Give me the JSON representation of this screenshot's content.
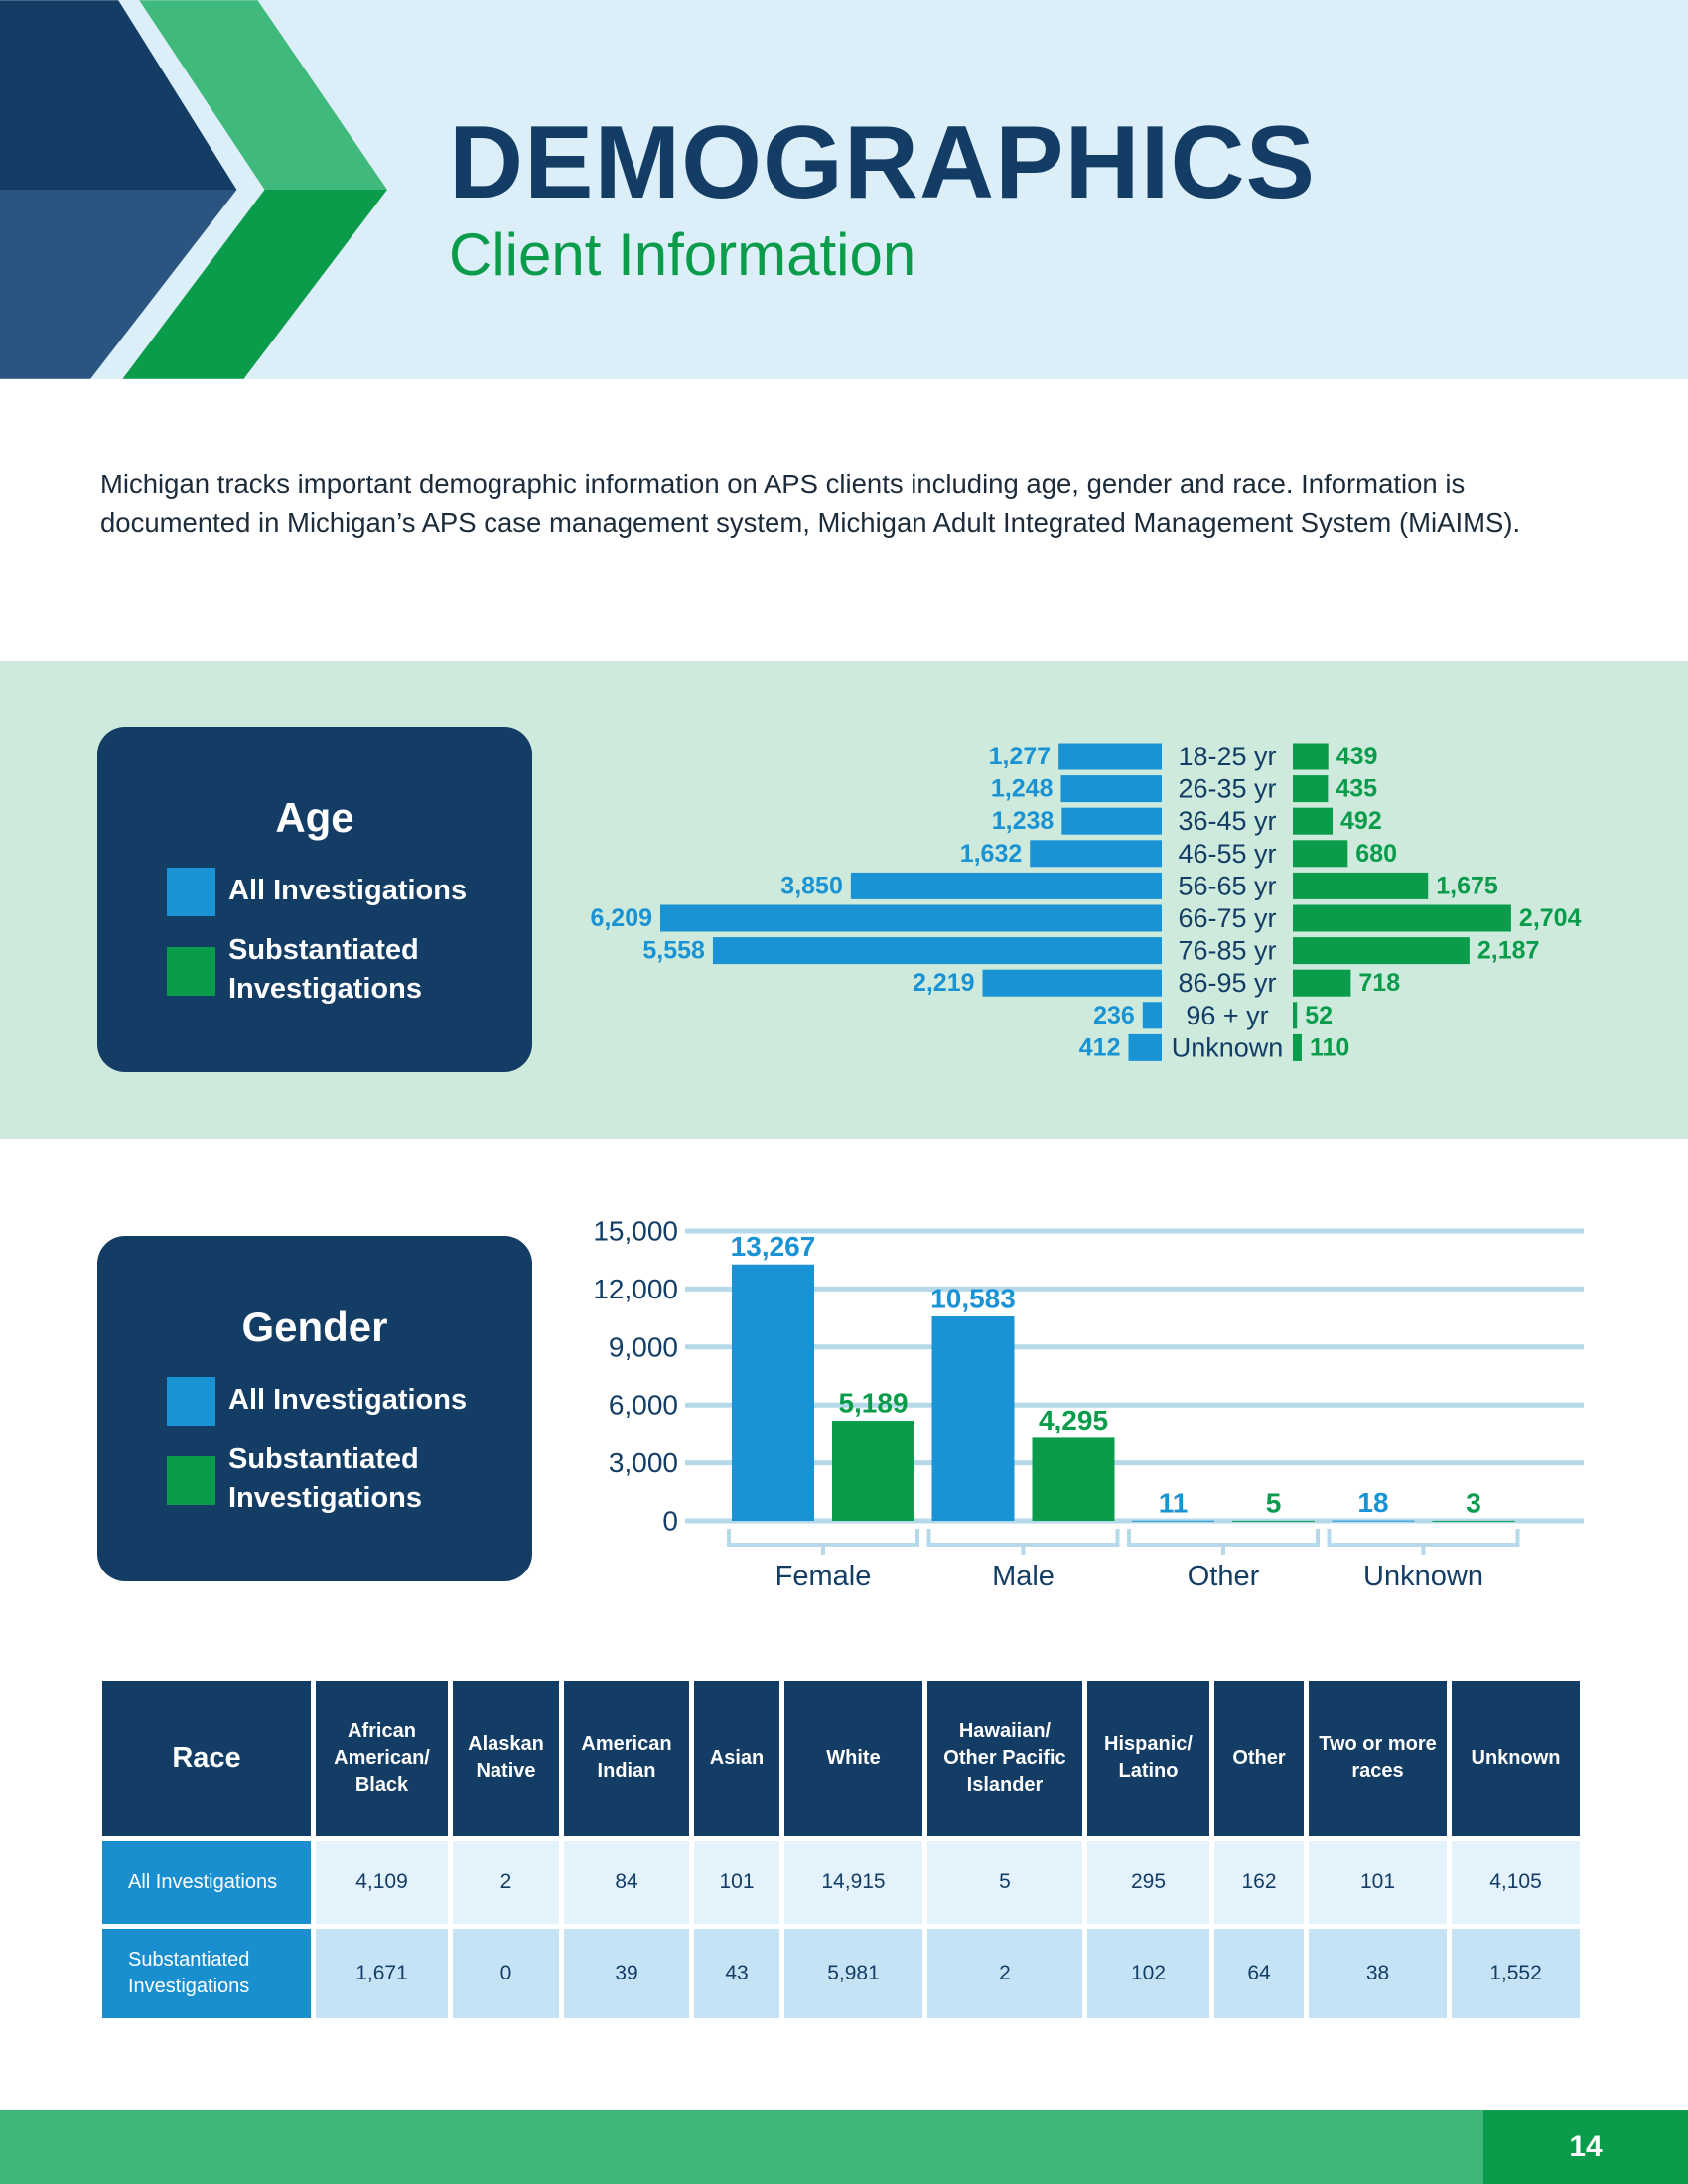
{
  "header": {
    "title": "DEMOGRAPHICS",
    "subtitle": "Client Information"
  },
  "intro": "Michigan tracks important demographic information on APS clients including age, gender and race. Information is documented in Michigan’s APS case management system, Michigan Adult Integrated Management System (MiAIMS).",
  "chart_data": [
    {
      "type": "butterfly",
      "title": "Age",
      "categories": [
        "18-25 yr",
        "26-35 yr",
        "36-45 yr",
        "46-55 yr",
        "56-65 yr",
        "66-75 yr",
        "76-85 yr",
        "86-95 yr",
        "96 + yr",
        "Unknown"
      ],
      "series": [
        {
          "name": "All Investigations",
          "color": "#1a93d4",
          "values": [
            1277,
            1248,
            1238,
            1632,
            3850,
            6209,
            5558,
            2219,
            236,
            412
          ],
          "value_labels": [
            "1,277",
            "1,248",
            "1,238",
            "1,632",
            "3,850",
            "6,209",
            "5,558",
            "2,219",
            "236",
            "412"
          ]
        },
        {
          "name": "Substantiated Investigations",
          "color": "#0a9c4b",
          "values": [
            439,
            435,
            492,
            680,
            1675,
            2704,
            2187,
            718,
            52,
            110
          ],
          "value_labels": [
            "439",
            "435",
            "492",
            "680",
            "1,675",
            "2,704",
            "2,187",
            "718",
            "52",
            "110"
          ]
        }
      ]
    },
    {
      "type": "bar",
      "title": "Gender",
      "categories": [
        "Female",
        "Male",
        "Other",
        "Unknown"
      ],
      "series": [
        {
          "name": "All Investigations",
          "color": "#1a93d4",
          "values": [
            13267,
            10583,
            11,
            18
          ],
          "value_labels": [
            "13,267",
            "10,583",
            "11",
            "18"
          ]
        },
        {
          "name": "Substantiated Investigations",
          "color": "#0a9c4b",
          "values": [
            5189,
            4295,
            5,
            3
          ],
          "value_labels": [
            "5,189",
            "4,295",
            "5",
            "3"
          ]
        }
      ],
      "ylim": [
        0,
        15000
      ],
      "yticks": [
        0,
        {
          "value": 3000,
          "label": "3,000"
        },
        {
          "value": 6000,
          "label": "6,000"
        },
        {
          "value": 9000,
          "label": "9,000"
        },
        {
          "value": 12000,
          "label": "12,000"
        },
        {
          "value": 15000,
          "label": "15,000"
        }
      ],
      "grid": true
    }
  ],
  "race_table": {
    "header": "Race",
    "columns": [
      "African American/ Black",
      "Alaskan Native",
      "American Indian",
      "Asian",
      "White",
      "Hawaiian/ Other Pacific Islander",
      "Hispanic/ Latino",
      "Other",
      "Two or more races",
      "Unknown"
    ],
    "rows": [
      {
        "label": "All Investigations",
        "values": [
          "4,109",
          "2",
          "84",
          "101",
          "14,915",
          "5",
          "295",
          "162",
          "101",
          "4,105"
        ]
      },
      {
        "label": "Substantiated Investigations",
        "values": [
          "1,671",
          "0",
          "39",
          "43",
          "5,981",
          "2",
          "102",
          "64",
          "38",
          "1,552"
        ]
      }
    ]
  },
  "page_number": "14"
}
